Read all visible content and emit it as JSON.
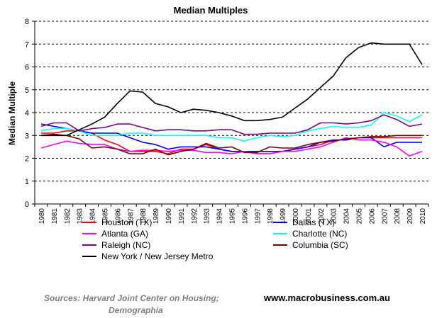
{
  "chart_data": {
    "type": "line",
    "title": "Median Multiples",
    "xlabel": "",
    "ylabel": "Median Multiple",
    "ylim": [
      0,
      8
    ],
    "yticks": [
      0,
      1,
      2,
      3,
      4,
      5,
      6,
      7,
      8
    ],
    "grid": "horizontal dashed at each integer",
    "x": [
      "1980",
      "1981",
      "1982",
      "1983",
      "1984",
      "1985",
      "1986",
      "1987",
      "1988",
      "1989",
      "1990",
      "1991",
      "1992",
      "1993",
      "1994",
      "1995",
      "1996",
      "1997",
      "1998",
      "1999",
      "2000",
      "2001",
      "2002",
      "2003",
      "2004",
      "2005",
      "2006",
      "2007",
      "2008",
      "2009",
      "2010"
    ],
    "series": [
      {
        "name": "Houston (TX)",
        "color": "#ff0000",
        "values": [
          3.1,
          3.1,
          3.2,
          3.2,
          3.1,
          2.8,
          2.6,
          2.3,
          2.3,
          2.3,
          2.2,
          2.4,
          2.4,
          2.6,
          2.4,
          2.3,
          2.3,
          2.2,
          2.2,
          2.3,
          2.4,
          2.5,
          2.6,
          2.8,
          2.8,
          2.9,
          2.9,
          2.9,
          2.9,
          2.9,
          2.9
        ]
      },
      {
        "name": "Dallas (TX)",
        "color": "#0000ff",
        "values": [
          3.5,
          3.4,
          3.3,
          3.2,
          3.1,
          3.1,
          3.1,
          2.9,
          2.7,
          2.6,
          2.4,
          2.5,
          2.5,
          2.5,
          2.4,
          2.3,
          2.3,
          2.3,
          2.3,
          2.3,
          2.4,
          2.5,
          2.7,
          2.8,
          2.8,
          2.9,
          2.9,
          2.5,
          2.7,
          2.7,
          2.7
        ]
      },
      {
        "name": "Atlanta (GA)",
        "color": "#ff00ff",
        "values": [
          2.45,
          2.6,
          2.75,
          2.65,
          2.6,
          2.6,
          2.4,
          2.3,
          2.35,
          2.35,
          2.3,
          2.35,
          2.35,
          2.25,
          2.25,
          2.2,
          2.3,
          2.2,
          2.2,
          2.3,
          2.3,
          2.4,
          2.5,
          2.7,
          2.9,
          2.8,
          2.8,
          2.7,
          2.5,
          2.1,
          2.3
        ]
      },
      {
        "name": "Charlotte (NC)",
        "color": "#00ffff",
        "values": [
          3.2,
          3.3,
          3.3,
          3.2,
          3.0,
          3.0,
          3.0,
          3.1,
          3.1,
          3.0,
          3.0,
          3.0,
          3.0,
          3.0,
          2.9,
          2.9,
          2.75,
          2.9,
          3.0,
          2.95,
          3.0,
          3.2,
          3.3,
          3.4,
          3.35,
          3.35,
          3.45,
          4.0,
          3.85,
          3.6,
          3.9
        ]
      },
      {
        "name": "Raleigh (NC)",
        "color": "#800080",
        "values": [
          3.4,
          3.55,
          3.55,
          3.2,
          3.3,
          3.35,
          3.5,
          3.5,
          3.35,
          3.2,
          3.25,
          3.25,
          3.2,
          3.2,
          3.25,
          3.25,
          3.05,
          3.05,
          3.1,
          3.1,
          3.1,
          3.25,
          3.55,
          3.55,
          3.5,
          3.55,
          3.65,
          3.9,
          3.7,
          3.4,
          3.5
        ]
      },
      {
        "name": "Columbia (SC)",
        "color": "#800000",
        "values": [
          3.0,
          3.05,
          3.0,
          2.85,
          2.45,
          2.5,
          2.4,
          2.2,
          2.2,
          2.4,
          2.15,
          2.3,
          2.4,
          2.65,
          2.45,
          2.5,
          2.25,
          2.25,
          2.5,
          2.45,
          2.45,
          2.6,
          2.7,
          2.75,
          2.85,
          2.9,
          2.95,
          2.95,
          3.0,
          3.0,
          3.0
        ]
      },
      {
        "name": "New York / New Jersey Metro",
        "color": "#000000",
        "values": [
          3.0,
          3.0,
          3.0,
          3.25,
          3.5,
          3.8,
          4.4,
          4.95,
          4.9,
          4.4,
          4.25,
          4.0,
          4.15,
          4.1,
          4.0,
          3.85,
          3.65,
          3.65,
          3.7,
          3.8,
          4.2,
          4.6,
          5.1,
          5.6,
          6.4,
          6.85,
          7.05,
          7.0,
          7.0,
          7.0,
          6.1
        ]
      }
    ],
    "legend": [
      "Houston (TX)",
      "Dallas (TX)",
      "Atlanta (GA)",
      "Charlotte (NC)",
      "Raleigh (NC)",
      "Columbia (SC)",
      "New York / New Jersey Metro"
    ]
  },
  "footer": {
    "sources_line1": "Sources: Harvard Joint Center on Housing;",
    "sources_line2": "Demographia",
    "website": "www.macrobusiness.com.au"
  }
}
